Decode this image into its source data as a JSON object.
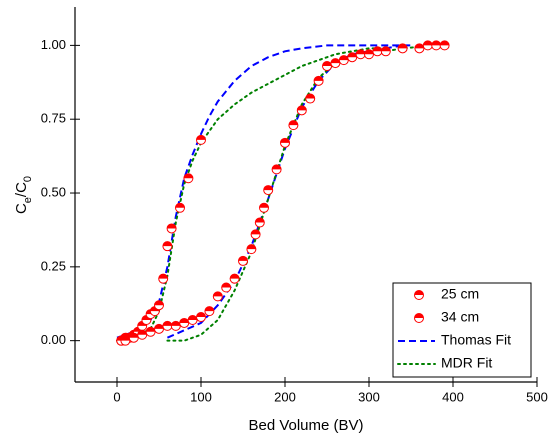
{
  "chart_data": {
    "type": "scatter",
    "xlabel": "Bed Volume (BV)",
    "ylabel_parts": [
      {
        "text": "C"
      },
      {
        "text": "e",
        "sub": true
      },
      {
        "text": "/C"
      },
      {
        "text": "0",
        "sub": true
      }
    ],
    "xlim": [
      -50,
      500
    ],
    "ylim": [
      -0.14,
      1.13
    ],
    "xticks": [
      0,
      100,
      200,
      300,
      400,
      500
    ],
    "yticks": [
      {
        "value": 0,
        "label": "0.00"
      },
      {
        "value": 0.25,
        "label": "0.25"
      },
      {
        "value": 0.5,
        "label": "0.50"
      },
      {
        "value": 0.75,
        "label": "0.75"
      },
      {
        "value": 1,
        "label": "1.00"
      }
    ],
    "legend": "lower right",
    "series": [
      {
        "name": "25 cm",
        "color": "#ff0000",
        "kind": "marker",
        "x": [
          5,
          10,
          15,
          20,
          25,
          30,
          35,
          40,
          45,
          50,
          55,
          60,
          65,
          75,
          85,
          100
        ],
        "values": [
          0,
          0.01,
          0.01,
          0.02,
          0.03,
          0.05,
          0.07,
          0.09,
          0.1,
          0.12,
          0.21,
          0.32,
          0.38,
          0.45,
          0.55,
          0.68
        ]
      },
      {
        "name": "34 cm",
        "color": "#ff0000",
        "kind": "marker",
        "x": [
          5,
          10,
          20,
          30,
          40,
          50,
          60,
          70,
          80,
          90,
          100,
          110,
          120,
          130,
          140,
          150,
          160,
          165,
          170,
          175,
          180,
          190,
          200,
          210,
          220,
          230,
          240,
          250,
          260,
          270,
          280,
          290,
          300,
          310,
          320,
          340,
          360,
          370,
          380,
          390
        ],
        "values": [
          0,
          0,
          0.01,
          0.02,
          0.03,
          0.04,
          0.05,
          0.05,
          0.06,
          0.07,
          0.08,
          0.1,
          0.15,
          0.18,
          0.21,
          0.27,
          0.31,
          0.36,
          0.4,
          0.45,
          0.51,
          0.58,
          0.67,
          0.73,
          0.78,
          0.82,
          0.88,
          0.93,
          0.94,
          0.95,
          0.96,
          0.97,
          0.97,
          0.98,
          0.98,
          0.99,
          0.99,
          1,
          1,
          1
        ]
      },
      {
        "name": "Thomas Fit",
        "color": "#0000ff",
        "kind": "dashed",
        "x": [
          0,
          20,
          40,
          50,
          60,
          70,
          80,
          90,
          100,
          110,
          120,
          140,
          160,
          180,
          200,
          220,
          250,
          280,
          300,
          350,
          null,
          60,
          100,
          120,
          140,
          160,
          180,
          200,
          220,
          240,
          260,
          280,
          300,
          320,
          340
        ],
        "values": [
          0.01,
          0.03,
          0.07,
          0.13,
          0.25,
          0.42,
          0.55,
          0.63,
          0.7,
          0.76,
          0.81,
          0.88,
          0.93,
          0.96,
          0.98,
          0.99,
          1,
          1,
          1,
          1,
          null,
          0.01,
          0.06,
          0.12,
          0.2,
          0.32,
          0.48,
          0.65,
          0.79,
          0.88,
          0.94,
          0.97,
          0.98,
          0.99,
          1
        ]
      },
      {
        "name": "MDR Fit",
        "color": "#008000",
        "kind": "dotted",
        "x": [
          0,
          20,
          40,
          50,
          60,
          70,
          80,
          90,
          100,
          120,
          140,
          160,
          180,
          200,
          220,
          240,
          260,
          280,
          300,
          320,
          null,
          60,
          80,
          100,
          120,
          140,
          160,
          180,
          200,
          220,
          240,
          260,
          280,
          300,
          340,
          380
        ],
        "values": [
          0,
          0.01,
          0.04,
          0.1,
          0.22,
          0.4,
          0.53,
          0.61,
          0.67,
          0.75,
          0.8,
          0.84,
          0.87,
          0.9,
          0.93,
          0.95,
          0.97,
          0.98,
          0.99,
          0.99,
          null,
          0,
          0,
          0.02,
          0.07,
          0.17,
          0.3,
          0.48,
          0.66,
          0.8,
          0.89,
          0.94,
          0.96,
          0.97,
          0.99,
          1
        ]
      }
    ]
  }
}
